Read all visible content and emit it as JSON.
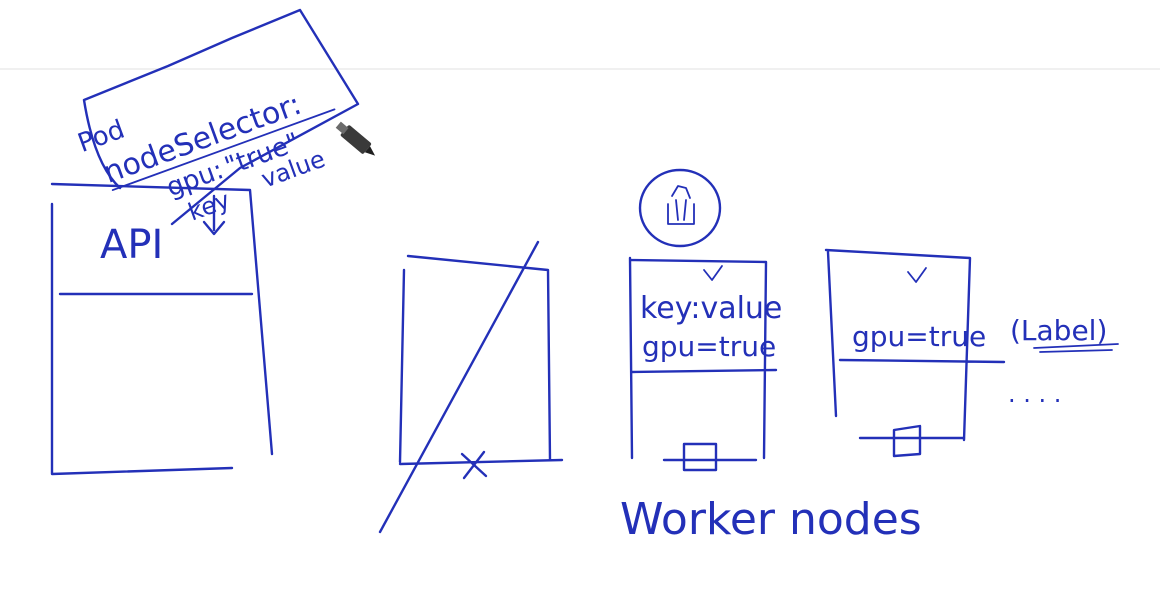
{
  "colors": {
    "ink": "#2330b8",
    "background": "#ffffff",
    "divider": "#e6e6e6",
    "marker": "#3a3a3a"
  },
  "icons": {
    "cursor": "marker-pen-icon",
    "pod": "pod-icon",
    "cross": "cross-mark-icon",
    "check": "check-mark-icon"
  },
  "note": {
    "pod": "Pod",
    "node_selector": "nodeSelector:",
    "gpu": "gpu:",
    "gpu_value": "\"true\"",
    "key": "key",
    "value": "value"
  },
  "api": {
    "label": "API"
  },
  "node2": {
    "label_key": "key:value",
    "label_gpu": "gpu=true"
  },
  "node3": {
    "label_gpu": "gpu=true",
    "label_note": "(Label)"
  },
  "ellipsis": ". . . .",
  "caption": "Worker nodes"
}
